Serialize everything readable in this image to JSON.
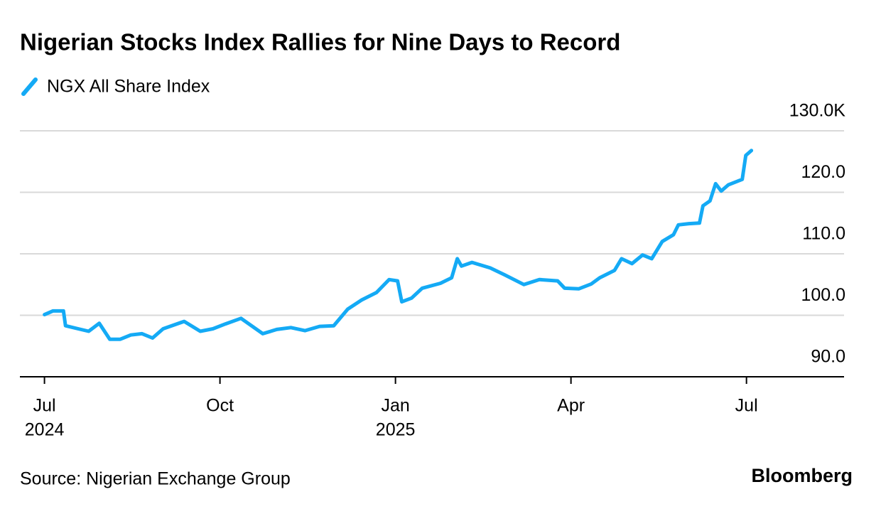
{
  "chart_data": {
    "type": "line",
    "title": "Nigerian Stocks Index Rallies for Nine Days to Record",
    "source": "Source: Nigerian Exchange Group",
    "brand": "Bloomberg",
    "x": [
      2024.5,
      2024.512,
      2024.527,
      2024.53,
      2024.548,
      2024.563,
      2024.578,
      2024.593,
      2024.608,
      2024.623,
      2024.639,
      2024.654,
      2024.669,
      2024.699,
      2024.722,
      2024.74,
      2024.758,
      2024.78,
      2024.811,
      2024.831,
      2024.851,
      2024.871,
      2024.892,
      2024.912,
      2024.932,
      2024.952,
      2024.973,
      2024.991,
      2025.003,
      2025.009,
      2025.023,
      2025.038,
      2025.064,
      2025.08,
      2025.088,
      2025.094,
      2025.109,
      2025.135,
      2025.155,
      2025.183,
      2025.205,
      2025.231,
      2025.241,
      2025.261,
      2025.279,
      2025.291,
      2025.312,
      2025.322,
      2025.337,
      2025.352,
      2025.365,
      2025.38,
      2025.396,
      2025.403,
      2025.418,
      2025.433,
      2025.438,
      2025.448,
      2025.456,
      2025.464,
      2025.474,
      2025.494,
      2025.499,
      2025.507
    ],
    "series": [
      {
        "name": "NGX All Share Index",
        "color": "#14aaf5",
        "values": [
          100.1,
          100.7,
          100.7,
          98.3,
          97.8,
          97.4,
          98.7,
          96.1,
          96.1,
          96.8,
          97.0,
          96.3,
          97.8,
          99.0,
          97.4,
          97.8,
          98.6,
          99.5,
          97.0,
          97.7,
          98.0,
          97.5,
          98.2,
          98.3,
          101.0,
          102.5,
          103.7,
          105.8,
          105.6,
          102.2,
          102.8,
          104.4,
          105.2,
          106.1,
          109.2,
          108.0,
          108.6,
          107.7,
          106.6,
          105.0,
          105.8,
          105.6,
          104.4,
          104.3,
          105.1,
          106.1,
          107.3,
          109.2,
          108.4,
          109.8,
          109.2,
          112.0,
          113.1,
          114.7,
          114.9,
          115.0,
          117.8,
          118.6,
          121.4,
          120.2,
          121.2,
          122.1,
          126.0,
          126.8
        ]
      }
    ],
    "xlim": [
      2024.465,
      2025.639
    ],
    "xticks": [
      {
        "value": 2024.5,
        "label": "Jul"
      },
      {
        "value": 2024.75,
        "label": "Oct"
      },
      {
        "value": 2025.0,
        "label": "Jan"
      },
      {
        "value": 2025.25,
        "label": "Apr"
      },
      {
        "value": 2025.5,
        "label": "Jul"
      }
    ],
    "xtick_years": [
      {
        "value": 2024.5,
        "label": "2024"
      },
      {
        "value": 2025.0,
        "label": "2025"
      }
    ],
    "ylim": [
      90,
      130
    ],
    "yticks": [
      {
        "value": 90,
        "label": "90.0"
      },
      {
        "value": 100,
        "label": "100.0"
      },
      {
        "value": 110,
        "label": "110.0"
      },
      {
        "value": 120,
        "label": "120.0"
      },
      {
        "value": 130,
        "label": "130.0K"
      }
    ],
    "grid": true
  }
}
